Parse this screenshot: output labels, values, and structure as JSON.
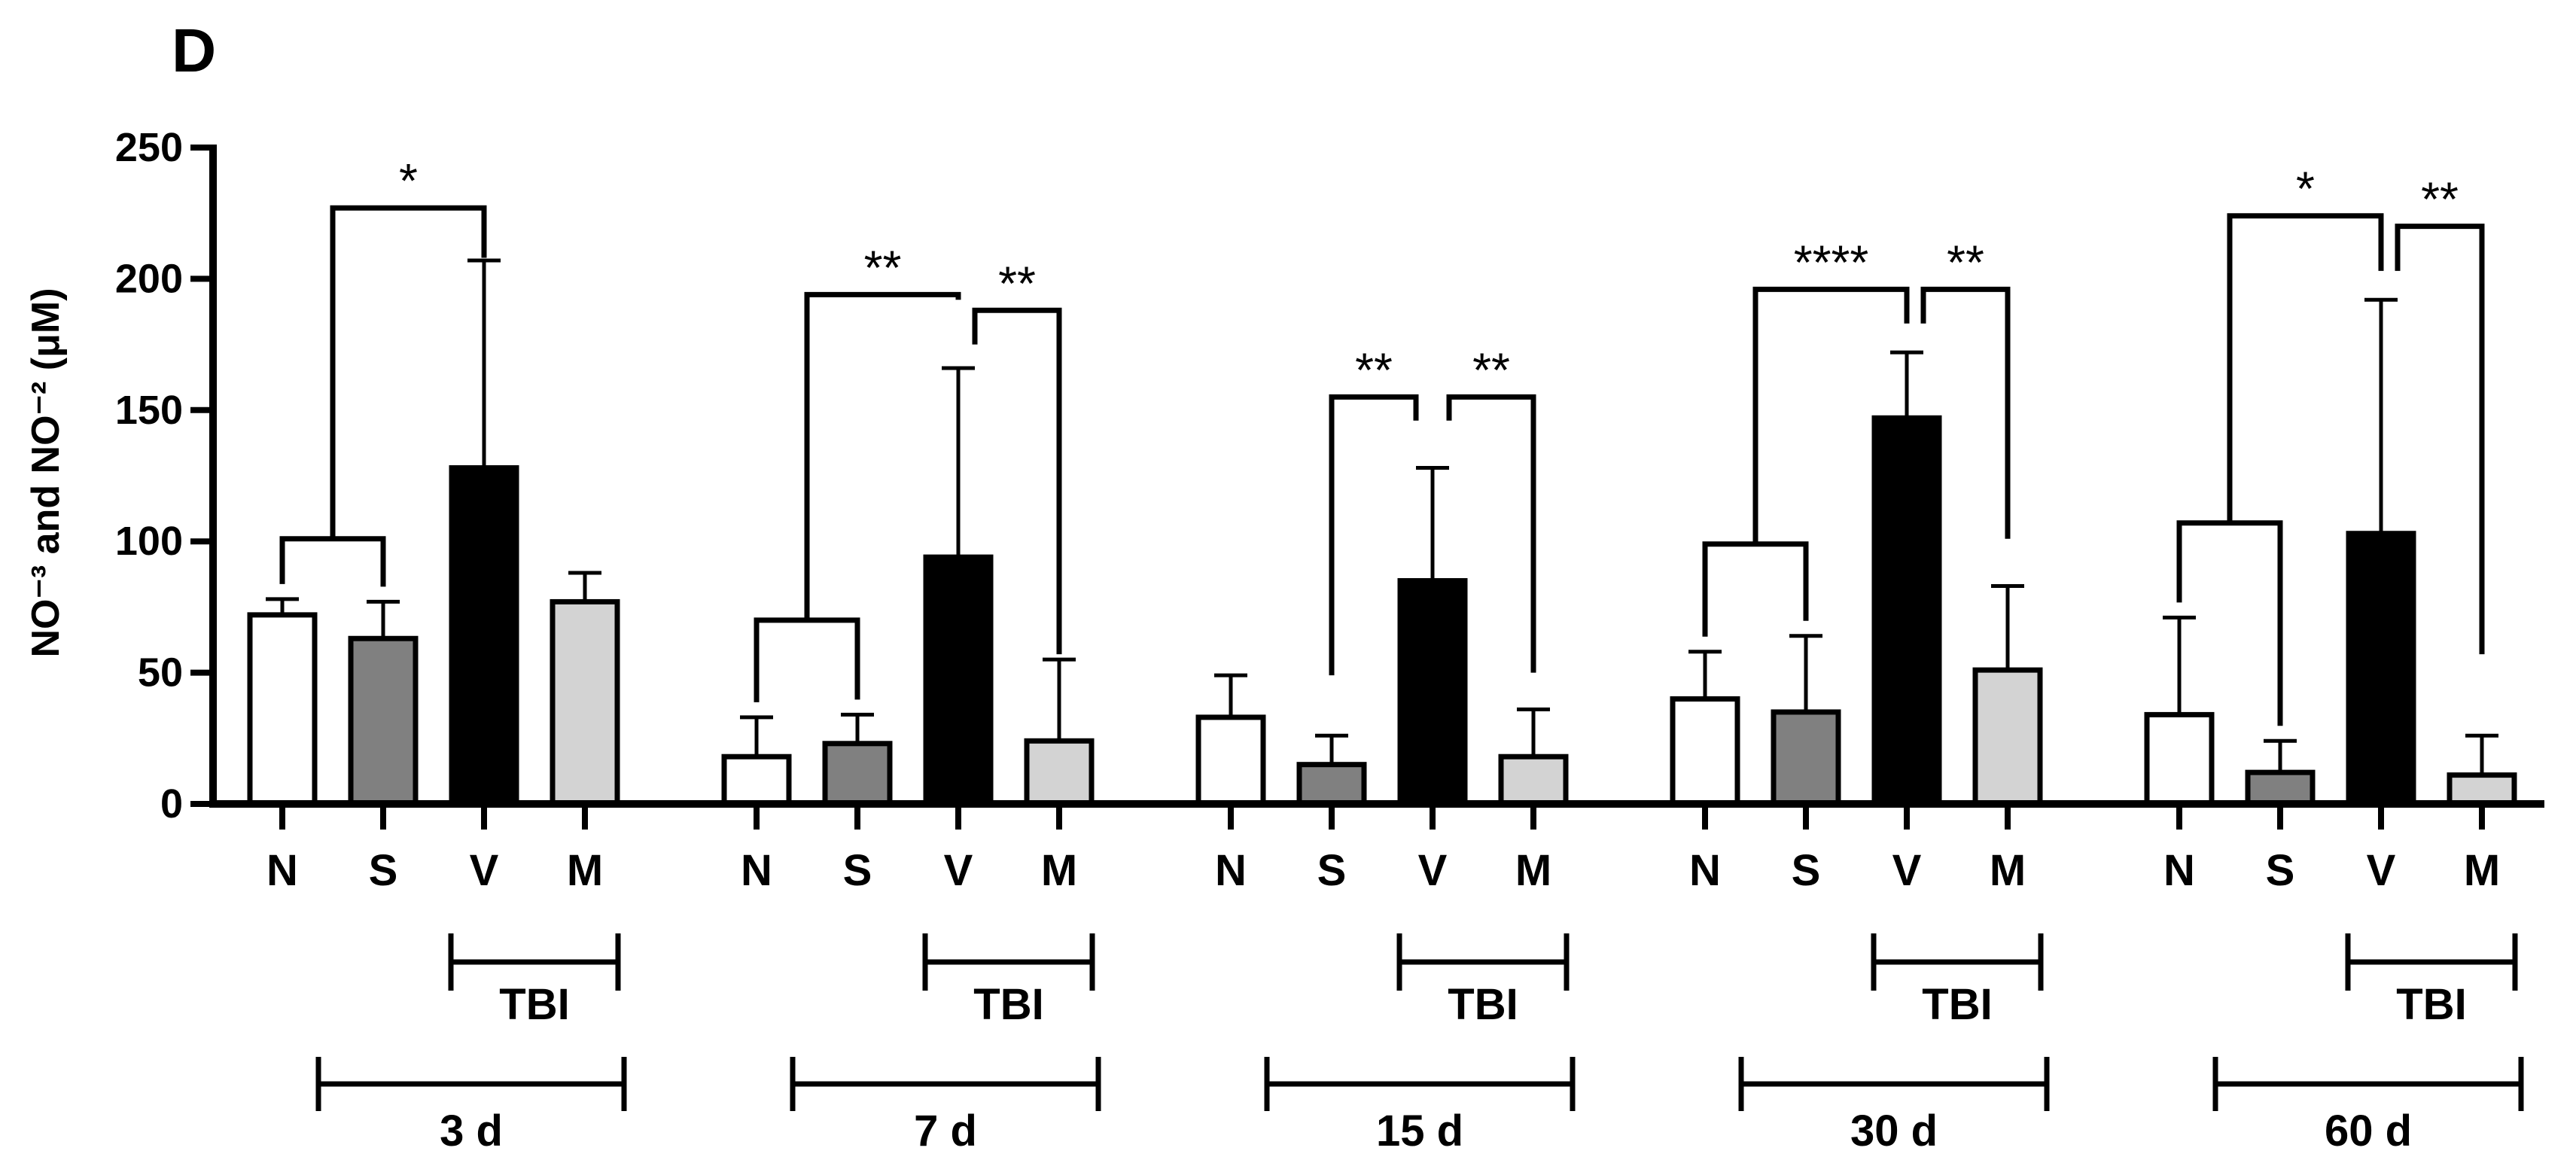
{
  "chart_data": {
    "type": "bar",
    "panel_label": "D",
    "ylabel": "NO⁻³ and NO⁻² (μM)",
    "ylim": [
      0,
      250
    ],
    "yticks": [
      "0",
      "50",
      "100",
      "150",
      "200",
      "250"
    ],
    "bar_labels": [
      "N",
      "S",
      "V",
      "M"
    ],
    "bar_colors": [
      "#ffffff",
      "#808080",
      "#000000",
      "#d3d3d3"
    ],
    "tbi_label": "TBI",
    "groups": [
      {
        "label": "3 d",
        "values": [
          72,
          63,
          128,
          77
        ],
        "errors": [
          6,
          14,
          79,
          11
        ]
      },
      {
        "label": "7 d",
        "values": [
          18,
          23,
          94,
          24
        ],
        "errors": [
          15,
          11,
          72,
          31
        ]
      },
      {
        "label": "15 d",
        "values": [
          33,
          15,
          85,
          18
        ],
        "errors": [
          16,
          11,
          43,
          18
        ]
      },
      {
        "label": "30 d",
        "values": [
          40,
          35,
          147,
          51
        ],
        "errors": [
          18,
          29,
          25,
          32
        ]
      },
      {
        "label": "60 d",
        "values": [
          34,
          12,
          103,
          11
        ],
        "errors": [
          37,
          12,
          89,
          15
        ]
      }
    ],
    "significance": [
      {
        "group": 0,
        "left": [
          0,
          1
        ],
        "right": 2,
        "left_y": 101,
        "right_y": 208,
        "top": 227,
        "label": "*"
      },
      {
        "group": 1,
        "left": [
          0,
          1
        ],
        "right": 2,
        "left_y": 70,
        "right_y": 192,
        "top": 194,
        "label": "**"
      },
      {
        "group": 1,
        "left": [
          2
        ],
        "right": 3,
        "left_y": 175,
        "right_y": 57,
        "top": 188,
        "label": "**"
      },
      {
        "group": 2,
        "left": [
          1
        ],
        "right": 2,
        "left_y": 49,
        "right_y": 146,
        "top": 155,
        "label": "**"
      },
      {
        "group": 2,
        "left": [
          2
        ],
        "right": 3,
        "left_y": 146,
        "right_y": 50,
        "top": 155,
        "label": "**"
      },
      {
        "group": 3,
        "left": [
          0,
          1
        ],
        "right": 2,
        "left_y": 99,
        "right_y": 183,
        "top": 196,
        "label": "****"
      },
      {
        "group": 3,
        "left": [
          2
        ],
        "right": 3,
        "left_y": 183,
        "right_y": 101,
        "top": 196,
        "label": "**"
      },
      {
        "group": 4,
        "left": [
          0,
          1
        ],
        "right": 2,
        "left_y": 107,
        "right_y": 203,
        "top": 224,
        "label": "*"
      },
      {
        "group": 4,
        "left": [
          2
        ],
        "right": 3,
        "left_y": 203,
        "right_y": 57,
        "top": 220,
        "label": "**"
      }
    ]
  }
}
